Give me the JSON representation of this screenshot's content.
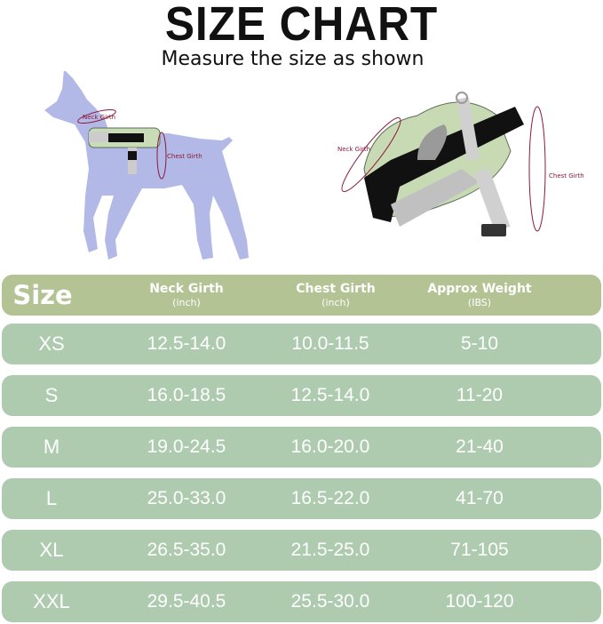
{
  "title": "SIZE CHART",
  "subtitle": "Measure the size as shown",
  "diagram": {
    "dog_neck_label": "Neck Girth",
    "dog_chest_label": "Chest Girth",
    "harness_neck_label": "Neck Girth",
    "harness_chest_label": "Chest Girth"
  },
  "table": {
    "headers": [
      {
        "label": "Size",
        "unit": ""
      },
      {
        "label": "Neck Girth",
        "unit": "(inch)"
      },
      {
        "label": "Chest Girth",
        "unit": "(inch)"
      },
      {
        "label": "Approx Weight",
        "unit": "(IBS)"
      }
    ],
    "rows": [
      [
        "XS",
        "12.5-14.0",
        "10.0-11.5",
        "5-10"
      ],
      [
        "S",
        "16.0-18.5",
        "12.5-14.0",
        "11-20"
      ],
      [
        "M",
        "19.0-24.5",
        "16.0-20.0",
        "21-40"
      ],
      [
        "L",
        "25.0-33.0",
        "16.5-22.0",
        "41-70"
      ],
      [
        "XL",
        "26.5-35.0",
        "21.5-25.0",
        "71-105"
      ],
      [
        "XXL",
        "29.5-40.5",
        "25.5-30.0",
        "100-120"
      ]
    ]
  },
  "colors": {
    "header_bg": "#b3c394",
    "row_bg": "#aecbb0",
    "dog": "#b3b9e6",
    "measure_line": "#8b1a3a"
  }
}
